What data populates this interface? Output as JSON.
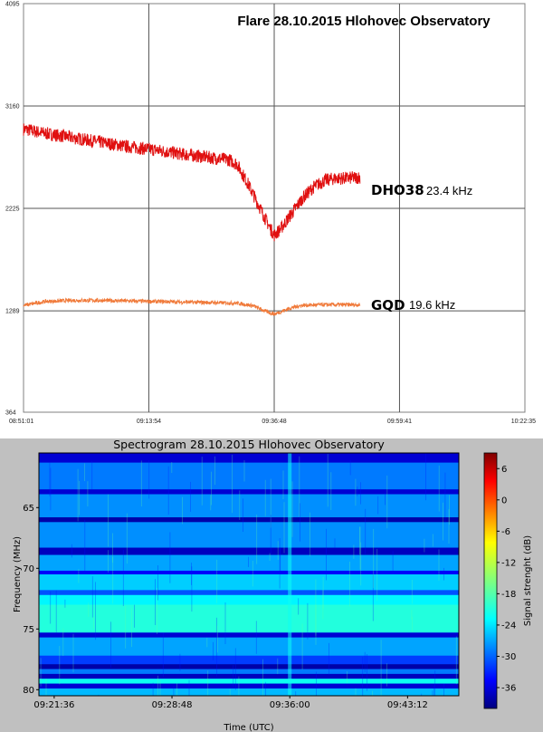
{
  "chart_data": [
    {
      "type": "line",
      "title": "Flare 28.10.2015   Hlohovec Observatory",
      "xlabel": "",
      "ylabel": "",
      "x_ticks": [
        "08:51:01",
        "09:13:54",
        "09:36:48",
        "09:59:41",
        "10:22:35"
      ],
      "xlim": [
        "08:51:01",
        "10:22:35"
      ],
      "y_ticks": [
        364,
        1289,
        2225,
        3160,
        4095
      ],
      "ylim": [
        364,
        4095
      ],
      "grid": true,
      "series": [
        {
          "name": "DHO38",
          "label_extra": "23.4 kHz",
          "color": "#e01010",
          "x": [
            "08:51:01",
            "08:55:00",
            "09:00:00",
            "09:05:00",
            "09:10:00",
            "09:15:00",
            "09:20:00",
            "09:25:00",
            "09:28:30",
            "09:30:00",
            "09:32:00",
            "09:34:00",
            "09:36:00",
            "09:36:48",
            "09:38:00",
            "09:40:00",
            "09:42:00",
            "09:44:00",
            "09:46:00",
            "09:48:00",
            "09:50:00",
            "09:52:30"
          ],
          "y": [
            2950,
            2910,
            2870,
            2830,
            2790,
            2760,
            2720,
            2690,
            2670,
            2630,
            2450,
            2250,
            2050,
            1980,
            2040,
            2180,
            2320,
            2420,
            2480,
            2500,
            2500,
            2510
          ]
        },
        {
          "name": "GQD",
          "label_extra": "19.6 kHz",
          "color": "#f07a3a",
          "x": [
            "08:51:01",
            "08:55:00",
            "09:00:00",
            "09:05:00",
            "09:10:00",
            "09:15:00",
            "09:20:00",
            "09:25:00",
            "09:30:00",
            "09:33:00",
            "09:35:00",
            "09:36:48",
            "09:38:00",
            "09:40:00",
            "09:42:00",
            "09:45:00",
            "09:48:00",
            "09:52:30"
          ],
          "y": [
            1340,
            1375,
            1385,
            1385,
            1380,
            1375,
            1370,
            1365,
            1360,
            1335,
            1290,
            1260,
            1280,
            1320,
            1340,
            1345,
            1345,
            1345
          ]
        }
      ]
    },
    {
      "type": "heatmap",
      "title": "Spectrogram 28.10.2015 Hlohovec Observatory",
      "xlabel": "Time (UTC)",
      "ylabel": "Frequency (MHz)",
      "x_ticks": [
        "09:21:36",
        "09:28:48",
        "09:36:00",
        "09:43:12"
      ],
      "xlim": [
        "09:20:40",
        "09:46:20"
      ],
      "y_ticks": [
        65,
        70,
        75,
        80
      ],
      "ylim": [
        60.5,
        80.5
      ],
      "y_inverted": true,
      "colorbar": {
        "label": "Signal strenght (dB)",
        "ticks": [
          6,
          0,
          -6,
          -12,
          -18,
          -24,
          -30,
          -36
        ],
        "range": [
          -40,
          9
        ],
        "colormap": "jet"
      },
      "base_level_db": -29,
      "bands": [
        {
          "from_mhz": 60.5,
          "to_mhz": 61.3,
          "level_db": -36
        },
        {
          "from_mhz": 61.3,
          "to_mhz": 63.5,
          "level_db": -28
        },
        {
          "from_mhz": 63.5,
          "to_mhz": 63.9,
          "level_db": -36
        },
        {
          "from_mhz": 63.9,
          "to_mhz": 65.8,
          "level_db": -27
        },
        {
          "from_mhz": 65.8,
          "to_mhz": 66.2,
          "level_db": -38
        },
        {
          "from_mhz": 66.2,
          "to_mhz": 68.3,
          "level_db": -27
        },
        {
          "from_mhz": 68.3,
          "to_mhz": 68.9,
          "level_db": -37
        },
        {
          "from_mhz": 68.9,
          "to_mhz": 70.2,
          "level_db": -26
        },
        {
          "from_mhz": 70.2,
          "to_mhz": 70.5,
          "level_db": -34
        },
        {
          "from_mhz": 70.5,
          "to_mhz": 71.8,
          "level_db": -24
        },
        {
          "from_mhz": 71.8,
          "to_mhz": 72.2,
          "level_db": -30
        },
        {
          "from_mhz": 72.2,
          "to_mhz": 73.0,
          "level_db": -22
        },
        {
          "from_mhz": 73.0,
          "to_mhz": 75.3,
          "level_db": -20
        },
        {
          "from_mhz": 75.3,
          "to_mhz": 75.7,
          "level_db": -36
        },
        {
          "from_mhz": 75.7,
          "to_mhz": 77.2,
          "level_db": -26
        },
        {
          "from_mhz": 77.2,
          "to_mhz": 77.9,
          "level_db": -31
        },
        {
          "from_mhz": 77.9,
          "to_mhz": 78.3,
          "level_db": -38
        },
        {
          "from_mhz": 78.3,
          "to_mhz": 78.7,
          "level_db": -28
        },
        {
          "from_mhz": 78.7,
          "to_mhz": 79.1,
          "level_db": -37
        },
        {
          "from_mhz": 79.1,
          "to_mhz": 79.5,
          "level_db": -21
        },
        {
          "from_mhz": 79.5,
          "to_mhz": 79.9,
          "level_db": -36
        },
        {
          "from_mhz": 79.9,
          "to_mhz": 80.5,
          "level_db": -25
        }
      ],
      "burst": {
        "time": "09:36:00",
        "level_db": -21
      }
    }
  ]
}
